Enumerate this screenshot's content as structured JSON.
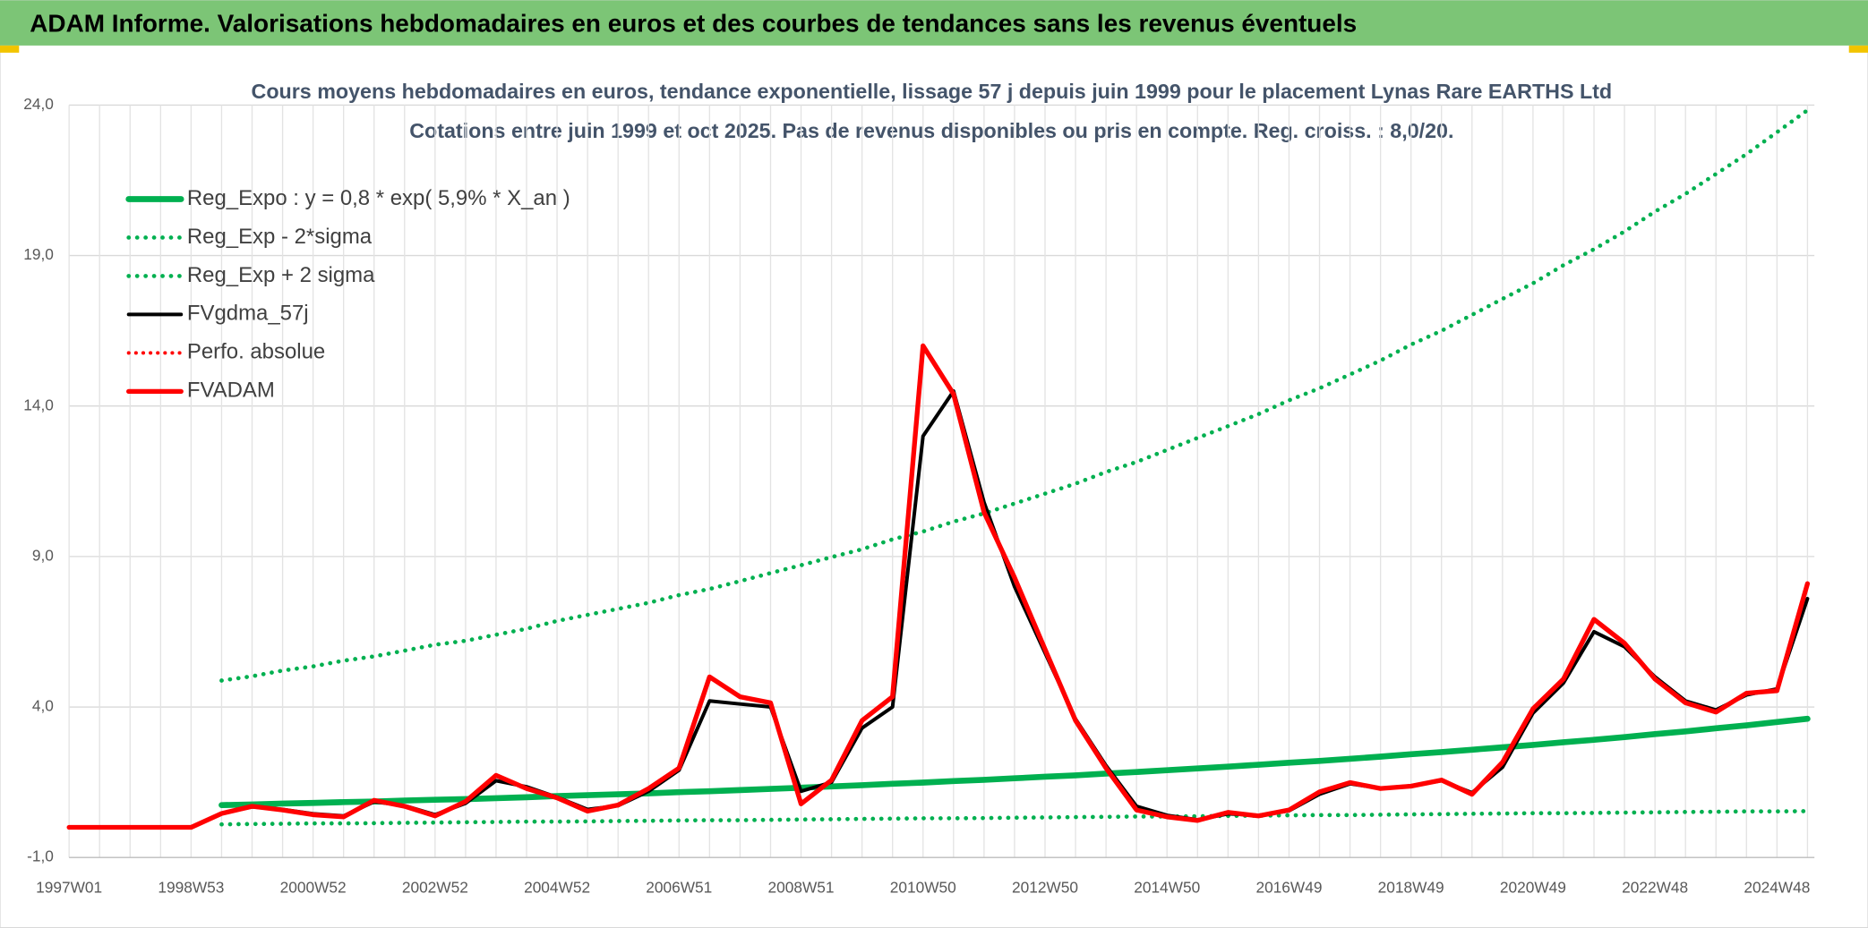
{
  "header": {
    "title": "ADAM Informe. Valorisations hebdomadaires en euros et des courbes de tendances sans les revenus éventuels"
  },
  "chart_data": {
    "type": "line",
    "title": "Cours moyens hebdomadaires en euros, tendance exponentielle, lissage 57 j depuis juin 1999 pour le placement Lynas Rare EARTHS Ltd",
    "subtitle": "Cotations entre juin 1999 et oct 2025. Pas de revenus disponibles ou pris en compte. Reg. croiss. : 8,0/20.",
    "categories": [
      "1997W01",
      null,
      null,
      null,
      "1998W53",
      null,
      null,
      null,
      "2000W52",
      null,
      null,
      null,
      "2002W52",
      null,
      null,
      null,
      "2004W52",
      null,
      null,
      null,
      "2006W51",
      null,
      null,
      null,
      "2008W51",
      null,
      null,
      null,
      "2010W50",
      null,
      null,
      null,
      "2012W50",
      null,
      null,
      null,
      "2014W50",
      null,
      null,
      null,
      "2016W49",
      null,
      null,
      null,
      "2018W49",
      null,
      null,
      null,
      "2020W49",
      null,
      null,
      null,
      "2022W48",
      null,
      null,
      null,
      "2024W48",
      null
    ],
    "ylim": [
      -1,
      24
    ],
    "yticks": [
      {
        "value": -1,
        "label": "-1,0"
      },
      {
        "value": 4,
        "label": "4,0"
      },
      {
        "value": 9,
        "label": "9,0"
      },
      {
        "value": 14,
        "label": "14,0"
      },
      {
        "value": 19,
        "label": "19,0"
      },
      {
        "value": 24,
        "label": "24,0"
      }
    ],
    "grid": true,
    "legend": "top-left",
    "series": [
      {
        "name": "Reg_Expo : y = 0,8 * exp( 5,9% *  X_an )",
        "color": "#00b050",
        "style": "solid",
        "width": 5,
        "values": [
          null,
          null,
          null,
          null,
          null,
          0.74,
          0.76,
          0.79,
          0.81,
          0.84,
          0.86,
          0.89,
          0.92,
          0.94,
          0.97,
          1.0,
          1.04,
          1.07,
          1.1,
          1.13,
          1.17,
          1.2,
          1.24,
          1.28,
          1.32,
          1.36,
          1.4,
          1.45,
          1.49,
          1.54,
          1.58,
          1.63,
          1.68,
          1.73,
          1.79,
          1.84,
          1.9,
          1.96,
          2.02,
          2.08,
          2.15,
          2.21,
          2.28,
          2.35,
          2.43,
          2.5,
          2.58,
          2.66,
          2.74,
          2.83,
          2.91,
          3.0,
          3.1,
          3.19,
          3.29,
          3.39,
          3.5,
          3.61
        ]
      },
      {
        "name": "Reg_Exp - 2*sigma",
        "color": "#00b050",
        "style": "dotted",
        "width": 3.5,
        "values": [
          null,
          null,
          null,
          null,
          null,
          0.1,
          0.11,
          0.12,
          0.13,
          0.13,
          0.14,
          0.15,
          0.16,
          0.17,
          0.18,
          0.19,
          0.19,
          0.2,
          0.21,
          0.22,
          0.23,
          0.24,
          0.24,
          0.25,
          0.26,
          0.27,
          0.28,
          0.29,
          0.3,
          0.3,
          0.31,
          0.32,
          0.33,
          0.34,
          0.35,
          0.36,
          0.36,
          0.37,
          0.38,
          0.39,
          0.4,
          0.41,
          0.41,
          0.42,
          0.43,
          0.44,
          0.45,
          0.46,
          0.47,
          0.47,
          0.48,
          0.49,
          0.5,
          0.51,
          0.52,
          0.53,
          0.53,
          0.54
        ]
      },
      {
        "name": "Reg_Exp + 2 sigma",
        "color": "#00b050",
        "style": "dotted",
        "width": 3.5,
        "values": [
          null,
          null,
          null,
          null,
          null,
          4.88,
          5.02,
          5.21,
          5.35,
          5.54,
          5.68,
          5.87,
          6.07,
          6.2,
          6.4,
          6.6,
          6.86,
          7.06,
          7.26,
          7.46,
          7.72,
          7.92,
          8.18,
          8.45,
          8.71,
          8.98,
          9.24,
          9.57,
          9.83,
          10.16,
          10.43,
          10.76,
          11.09,
          11.42,
          11.81,
          12.14,
          12.54,
          12.94,
          13.33,
          13.73,
          14.19,
          14.59,
          15.05,
          15.51,
          16.04,
          16.5,
          17.03,
          17.56,
          18.08,
          18.68,
          19.21,
          19.8,
          20.46,
          21.05,
          21.71,
          22.37,
          23.1,
          23.83
        ]
      },
      {
        "name": "FVgdma_57j",
        "color": "#000000",
        "style": "solid",
        "width": 3,
        "values": [
          null,
          null,
          null,
          null,
          null,
          0.46,
          0.68,
          0.6,
          0.45,
          0.38,
          0.85,
          0.72,
          0.42,
          0.8,
          1.55,
          1.35,
          1.0,
          0.6,
          0.72,
          1.2,
          1.9,
          4.2,
          4.1,
          4.0,
          1.2,
          1.5,
          3.3,
          4.0,
          13.0,
          14.5,
          10.8,
          8.0,
          5.8,
          3.6,
          2.05,
          0.7,
          0.4,
          0.25,
          0.45,
          0.4,
          0.55,
          1.1,
          1.45,
          1.3,
          1.38,
          1.55,
          1.15,
          2.0,
          3.8,
          4.8,
          6.5,
          6.0,
          5.0,
          4.2,
          3.9,
          4.4,
          4.6,
          7.6
        ]
      },
      {
        "name": "Perfo. absolue",
        "color": "#ff0000",
        "style": "dotted",
        "width": 3,
        "values": [
          0,
          0,
          0,
          0,
          0,
          0.46,
          0.7,
          0.58,
          0.42,
          0.35,
          0.9,
          0.7,
          0.38,
          0.86,
          1.73,
          1.29,
          0.98,
          0.54,
          0.74,
          1.29,
          1.97,
          5.0,
          4.34,
          4.14,
          0.78,
          1.57,
          3.55,
          4.34,
          16.0,
          14.4,
          10.47,
          8.3,
          5.92,
          3.55,
          1.97,
          0.58,
          0.35,
          0.23,
          0.5,
          0.38,
          0.58,
          1.18,
          1.49,
          1.29,
          1.37,
          1.57,
          1.1,
          2.16,
          3.94,
          4.93,
          6.91,
          6.12,
          4.93,
          4.14,
          3.83,
          4.46,
          4.54,
          8.1
        ]
      },
      {
        "name": "FVADAM",
        "color": "#ff0000",
        "style": "solid",
        "width": 4,
        "values": [
          0,
          0,
          0,
          0,
          0,
          0.46,
          0.7,
          0.58,
          0.42,
          0.35,
          0.9,
          0.7,
          0.38,
          0.86,
          1.73,
          1.29,
          0.98,
          0.54,
          0.74,
          1.29,
          1.97,
          5.0,
          4.34,
          4.14,
          0.78,
          1.57,
          3.55,
          4.34,
          16.0,
          14.4,
          10.47,
          8.3,
          5.92,
          3.55,
          1.97,
          0.58,
          0.35,
          0.23,
          0.5,
          0.38,
          0.58,
          1.18,
          1.49,
          1.29,
          1.37,
          1.57,
          1.1,
          2.16,
          3.94,
          4.93,
          6.91,
          6.12,
          4.93,
          4.14,
          3.83,
          4.46,
          4.54,
          8.1
        ]
      }
    ]
  }
}
